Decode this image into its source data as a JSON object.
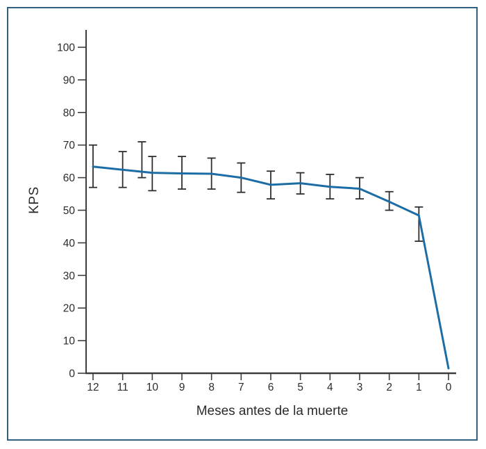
{
  "figure": {
    "background": "#ffffff",
    "frame_color": "#305f80"
  },
  "chart_data": {
    "type": "line",
    "title": "",
    "xlabel": "Meses antes de la muerte",
    "ylabel": "KPS",
    "x_axis_reversed": true,
    "x": [
      12,
      11,
      10,
      9,
      8,
      7,
      6,
      5,
      4,
      3,
      2,
      1,
      0
    ],
    "y": [
      63.4,
      62.4,
      61.5,
      61.3,
      61.2,
      60.0,
      57.8,
      58.3,
      57.2,
      56.6,
      52.6,
      48.4,
      1.5
    ],
    "error_bars": [
      {
        "x": 12,
        "lo": 57.0,
        "hi": 70.0
      },
      {
        "x": 11,
        "lo": 57.0,
        "hi": 68.0
      },
      {
        "x": 10.35,
        "lo": 60.0,
        "hi": 71.0
      },
      {
        "x": 10,
        "lo": 56.0,
        "hi": 66.5
      },
      {
        "x": 9,
        "lo": 56.5,
        "hi": 66.5
      },
      {
        "x": 8,
        "lo": 56.5,
        "hi": 66.0
      },
      {
        "x": 7,
        "lo": 55.5,
        "hi": 64.5
      },
      {
        "x": 6,
        "lo": 53.5,
        "hi": 62.0
      },
      {
        "x": 5,
        "lo": 55.0,
        "hi": 61.5
      },
      {
        "x": 4,
        "lo": 53.5,
        "hi": 61.0
      },
      {
        "x": 3,
        "lo": 53.5,
        "hi": 60.0
      },
      {
        "x": 2,
        "lo": 50.0,
        "hi": 55.7
      },
      {
        "x": 1,
        "lo": 40.5,
        "hi": 51.0
      }
    ],
    "xticks": [
      12,
      11,
      10,
      9,
      8,
      7,
      6,
      5,
      4,
      3,
      2,
      1,
      0
    ],
    "yticks": [
      0,
      10,
      20,
      30,
      40,
      50,
      60,
      70,
      80,
      90,
      100
    ],
    "xlim": [
      12,
      0
    ],
    "ylim": [
      0,
      105
    ],
    "grid": false,
    "legend": null,
    "colors": {
      "line": "#1c6da6",
      "error_bar": "#2e2e2e",
      "axis": "#3d3d3d",
      "text": "#2b2b2b"
    }
  }
}
